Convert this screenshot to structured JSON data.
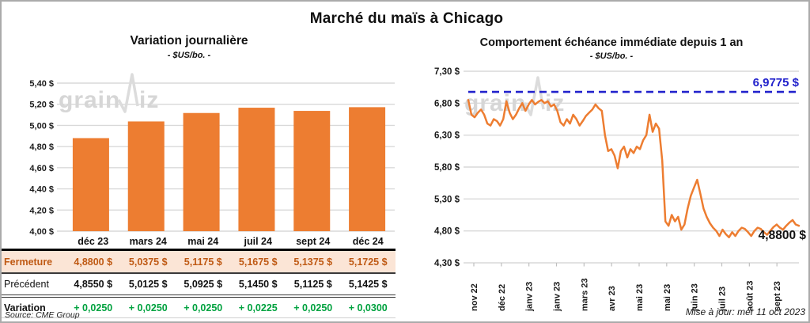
{
  "header": {
    "title": "Marché du maïs à Chicago"
  },
  "footer": {
    "source": "Source: CME Group",
    "updated": "Mise à jour: mer 11 oct 2023"
  },
  "watermark": {
    "left": "grain",
    "right": "iz"
  },
  "colors": {
    "series_orange": "#ED7D31",
    "threshold_blue": "#2222CC",
    "gridline": "#D9D9D9",
    "fermeture_bg": "#FBE5D6",
    "fermeture_text": "#BF5913",
    "variation_green": "#00A23F"
  },
  "chart_data": [
    {
      "type": "bar",
      "title": "Variation journalière",
      "subtitle": "- $US/bo. -",
      "categories": [
        "déc 23",
        "mars 24",
        "mai 24",
        "juil 24",
        "sept 24",
        "déc 24"
      ],
      "values": [
        4.88,
        5.0375,
        5.1175,
        5.1675,
        5.1375,
        5.1725
      ],
      "ylim": [
        4.0,
        5.4
      ],
      "ytick_step": 0.2,
      "ytick_labels": [
        "5,40 $",
        "5,20 $",
        "5,00 $",
        "4,80 $",
        "4,60 $",
        "4,40 $",
        "4,20 $",
        "4,00 $"
      ],
      "grid": true,
      "legend": "none"
    },
    {
      "type": "line",
      "title": "Comportement échéance immédiate depuis 1 an",
      "subtitle": "- $US/bo. -",
      "x_tick_labels": [
        "nov 22",
        "déc 22",
        "janv 23",
        "janv 23",
        "mars 23",
        "avr 23",
        "mai 23",
        "mai 23",
        "juin 23",
        "juil 23",
        "août 23",
        "sept 23"
      ],
      "values": [
        6.85,
        6.62,
        6.58,
        6.65,
        6.7,
        6.62,
        6.48,
        6.45,
        6.55,
        6.52,
        6.45,
        6.55,
        6.83,
        6.65,
        6.55,
        6.62,
        6.72,
        6.8,
        6.68,
        6.78,
        6.85,
        6.78,
        6.82,
        6.85,
        6.8,
        6.83,
        6.75,
        6.78,
        6.68,
        6.5,
        6.45,
        6.55,
        6.48,
        6.62,
        6.55,
        6.45,
        6.52,
        6.6,
        6.65,
        6.7,
        6.78,
        6.72,
        6.68,
        6.3,
        6.05,
        6.08,
        5.98,
        5.78,
        6.05,
        6.12,
        5.95,
        6.08,
        6.02,
        6.12,
        6.08,
        6.22,
        6.3,
        6.62,
        6.35,
        6.48,
        6.4,
        5.9,
        4.95,
        4.88,
        5.05,
        4.95,
        5.02,
        4.82,
        4.9,
        5.15,
        5.35,
        5.48,
        5.6,
        5.38,
        5.15,
        5.02,
        4.92,
        4.85,
        4.8,
        4.72,
        4.82,
        4.75,
        4.7,
        4.78,
        4.72,
        4.8,
        4.85,
        4.83,
        4.78,
        4.72,
        4.8,
        4.85,
        4.83,
        4.78,
        4.74,
        4.8,
        4.86,
        4.9,
        4.85,
        4.82,
        4.88,
        4.93,
        4.97,
        4.9,
        4.88
      ],
      "ylim": [
        4.3,
        7.3
      ],
      "ytick_step": 0.5,
      "ytick_labels": [
        "7,30 $",
        "6,80 $",
        "6,30 $",
        "5,80 $",
        "5,30 $",
        "4,80 $",
        "4,30 $"
      ],
      "threshold": {
        "value": 6.9775,
        "label": "6,9775 $"
      },
      "last_value": 4.88,
      "last_label": "4,8800 $",
      "grid": true,
      "legend": "none"
    }
  ],
  "table": {
    "corner": "",
    "columns": [
      "déc 23",
      "mars 24",
      "mai 24",
      "juil 24",
      "sept 24",
      "déc 24"
    ],
    "rows": [
      {
        "key": "fermeture",
        "label": "Fermeture",
        "values": [
          "4,8800 $",
          "5,0375 $",
          "5,1175 $",
          "5,1675 $",
          "5,1375 $",
          "5,1725 $"
        ]
      },
      {
        "key": "precedent",
        "label": "Précédent",
        "values": [
          "4,8550 $",
          "5,0125 $",
          "5,0925 $",
          "5,1450 $",
          "5,1125 $",
          "5,1425 $"
        ]
      },
      {
        "key": "variation",
        "label": "Variation",
        "values": [
          "+ 0,0250",
          "+ 0,0250",
          "+ 0,0250",
          "+ 0,0225",
          "+ 0,0250",
          "+ 0,0300"
        ]
      }
    ]
  }
}
